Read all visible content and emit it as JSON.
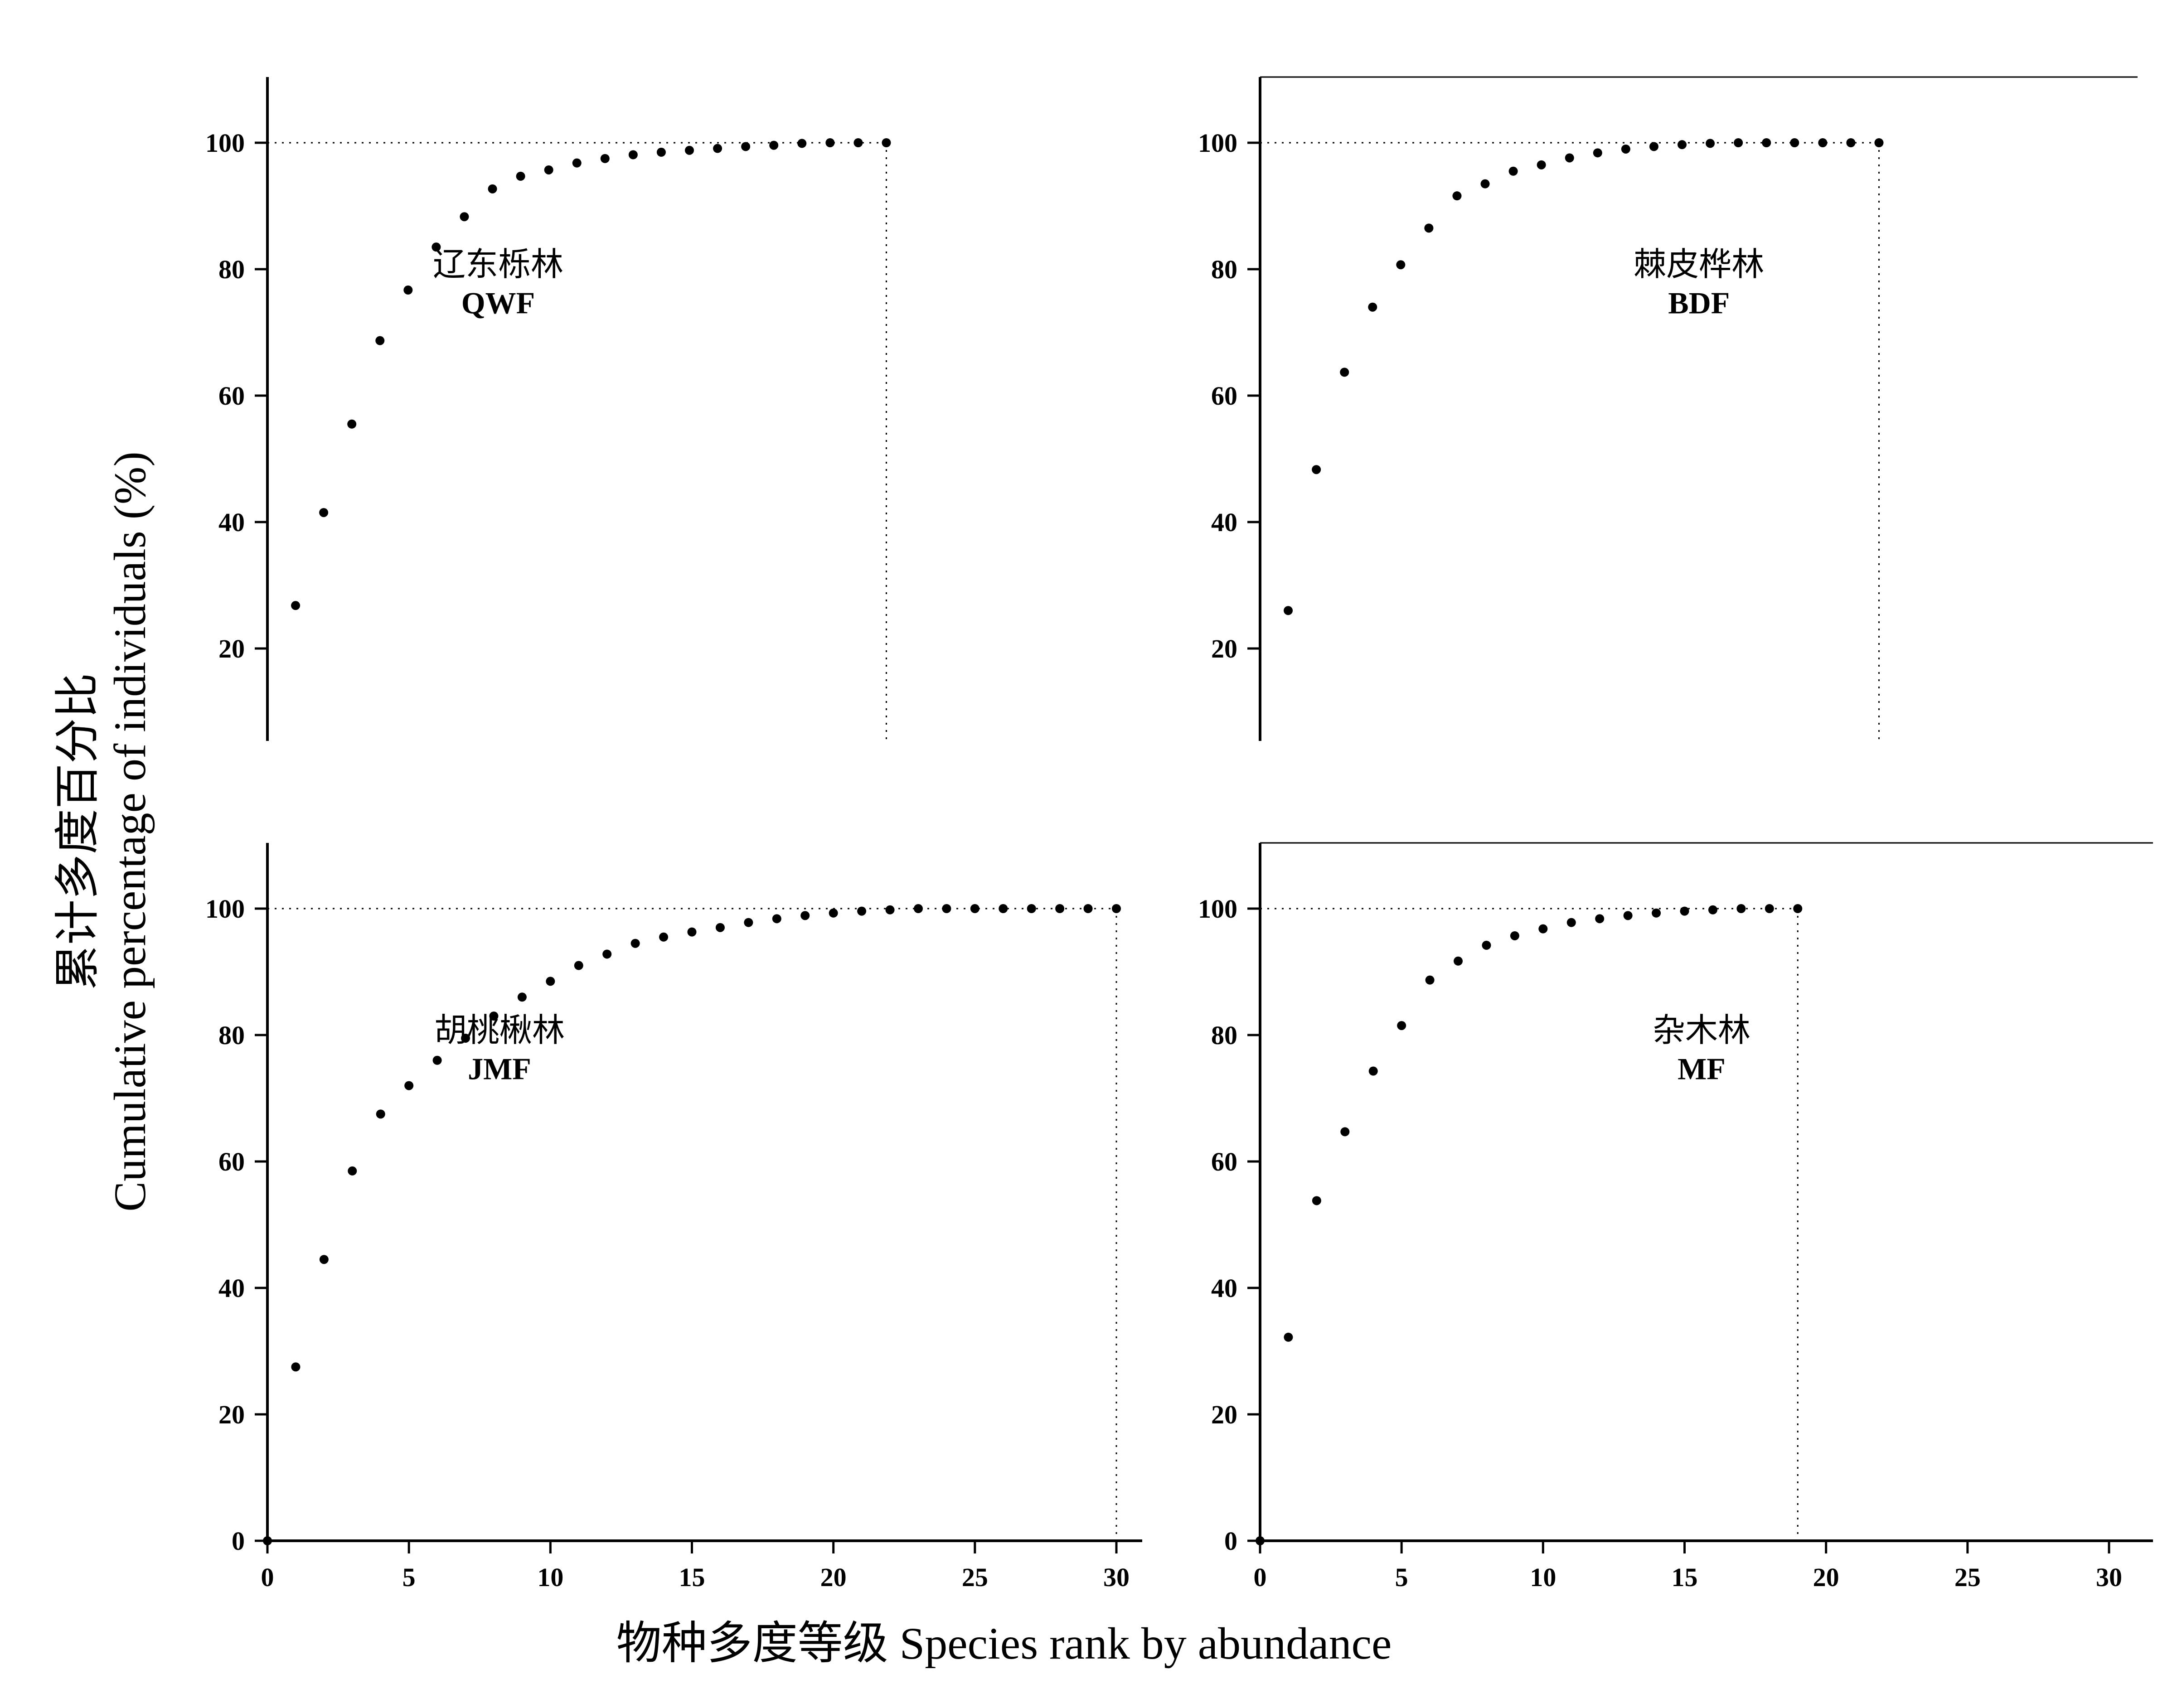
{
  "figure": {
    "ylabel_cn": "累计多度百分比",
    "ylabel_en": "Cumulative percentage of individuals (%)",
    "xlabel": "物种多度等级 Species rank by abundance"
  },
  "chart_data": [
    {
      "type": "scatter",
      "id": "qwf",
      "label_cn": "辽东栎林",
      "label_en": "QWF",
      "x": [
        1,
        2,
        3,
        4,
        5,
        6,
        7,
        8,
        9,
        10,
        11,
        12,
        13,
        14,
        15,
        16,
        17,
        18,
        19,
        20,
        21,
        22
      ],
      "y": [
        26.8,
        41.5,
        55.5,
        68.7,
        76.7,
        83.5,
        88.3,
        92.7,
        94.7,
        95.7,
        96.8,
        97.5,
        98.1,
        98.5,
        98.8,
        99.1,
        99.4,
        99.6,
        99.9,
        100,
        100,
        100
      ],
      "richness": 22,
      "xlim": [
        0,
        30
      ],
      "ylim": [
        0,
        110
      ],
      "yticks": [
        20,
        40,
        60,
        80,
        100
      ],
      "reference_line_y": 100,
      "grid": false
    },
    {
      "type": "scatter",
      "id": "bdf",
      "label_cn": "棘皮桦林",
      "label_en": "BDF",
      "x": [
        1,
        2,
        3,
        4,
        5,
        6,
        7,
        8,
        9,
        10,
        11,
        12,
        13,
        14,
        15,
        16,
        17,
        18,
        19,
        20,
        21,
        22
      ],
      "y": [
        26.0,
        48.3,
        63.7,
        74.0,
        80.7,
        86.5,
        91.6,
        93.5,
        95.5,
        96.5,
        97.6,
        98.4,
        99.0,
        99.4,
        99.7,
        99.9,
        100,
        100,
        100,
        100,
        100,
        100
      ],
      "richness": 22,
      "xlim": [
        0,
        30
      ],
      "ylim": [
        0,
        110
      ],
      "yticks": [
        20,
        40,
        60,
        80,
        100
      ],
      "reference_line_y": 100,
      "grid": false
    },
    {
      "type": "scatter",
      "id": "jmf",
      "label_cn": "胡桃楸林",
      "label_en": "JMF",
      "x": [
        0,
        1,
        2,
        3,
        4,
        5,
        6,
        7,
        8,
        9,
        10,
        11,
        12,
        13,
        14,
        15,
        16,
        17,
        18,
        19,
        20,
        21,
        22,
        23,
        24,
        25,
        26,
        27,
        28,
        29,
        30
      ],
      "y": [
        0,
        27.5,
        44.5,
        58.5,
        67.5,
        72.0,
        76.0,
        79.5,
        83.0,
        86.0,
        88.5,
        91.0,
        92.8,
        94.5,
        95.5,
        96.3,
        97.0,
        97.8,
        98.4,
        98.9,
        99.3,
        99.6,
        99.8,
        100,
        100,
        100,
        100,
        100,
        100,
        100,
        100
      ],
      "richness": 30,
      "xlim": [
        0,
        30
      ],
      "ylim": [
        0,
        110
      ],
      "xticks": [
        0,
        5,
        10,
        15,
        20,
        25,
        30
      ],
      "yticks": [
        0,
        20,
        40,
        60,
        80,
        100
      ],
      "reference_line_y": 100,
      "grid": false
    },
    {
      "type": "scatter",
      "id": "mf",
      "label_cn": "杂木林",
      "label_en": "MF",
      "x": [
        0,
        1,
        2,
        3,
        4,
        5,
        6,
        7,
        8,
        9,
        10,
        11,
        12,
        13,
        14,
        15,
        16,
        17,
        18,
        19
      ],
      "y": [
        0,
        32.2,
        53.8,
        64.7,
        74.3,
        81.5,
        88.7,
        91.7,
        94.2,
        95.7,
        96.8,
        97.8,
        98.4,
        98.9,
        99.3,
        99.6,
        99.8,
        100,
        100,
        100
      ],
      "richness": 19,
      "xlim": [
        0,
        30
      ],
      "ylim": [
        0,
        110
      ],
      "xticks": [
        0,
        5,
        10,
        15,
        20,
        25,
        30
      ],
      "yticks": [
        0,
        20,
        40,
        60,
        80,
        100
      ],
      "reference_line_y": 100,
      "grid": false
    }
  ]
}
